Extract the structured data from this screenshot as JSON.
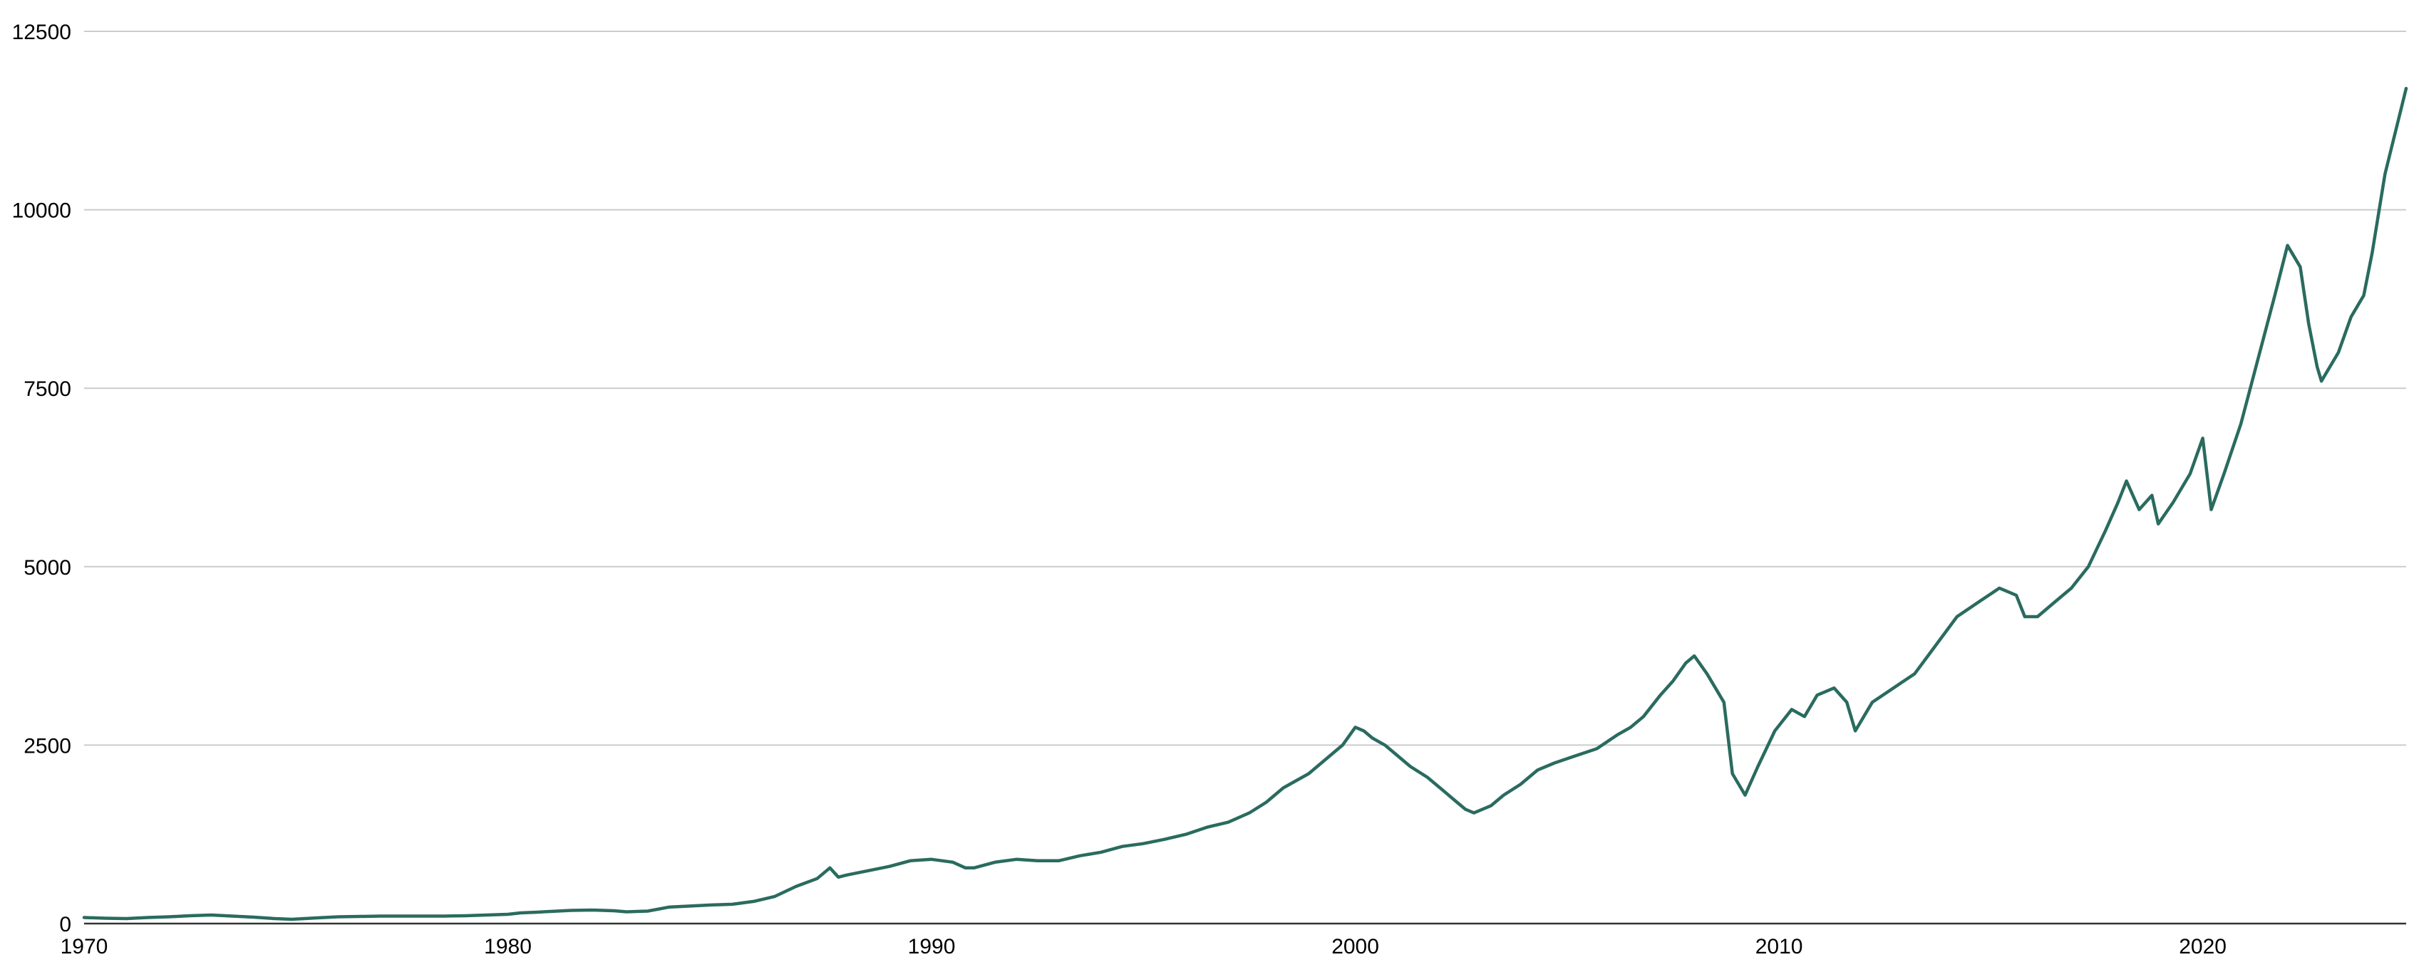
{
  "chart_data": {
    "type": "line",
    "title": "",
    "xlabel": "",
    "ylabel": "",
    "xlim": [
      1970,
      2024.8
    ],
    "ylim": [
      0,
      12500
    ],
    "y_ticks": [
      0,
      2500,
      5000,
      7500,
      10000,
      12500
    ],
    "y_tick_labels": [
      "0",
      "2500",
      "5000",
      "7500",
      "10000",
      "12500"
    ],
    "x_ticks": [
      1970,
      1980,
      1990,
      2000,
      2010,
      2020
    ],
    "x_tick_labels": [
      "1970",
      "1980",
      "1990",
      "2000",
      "2010",
      "2020"
    ],
    "grid": "horizontal",
    "legend": "none",
    "line_color": "#2a6b5f",
    "series": [
      {
        "x": [
          1970.0,
          1970.5,
          1971.0,
          1971.5,
          1972.0,
          1972.5,
          1973.0,
          1973.5,
          1974.0,
          1974.5,
          1974.9,
          1975.5,
          1976.0,
          1976.5,
          1977.0,
          1977.5,
          1978.0,
          1978.5,
          1979.0,
          1979.5,
          1980.0,
          1980.3,
          1980.7,
          1981.0,
          1981.5,
          1982.0,
          1982.5,
          1982.8,
          1983.3,
          1983.8,
          1984.3,
          1984.8,
          1985.3,
          1985.8,
          1986.3,
          1986.8,
          1987.3,
          1987.6,
          1987.8,
          1988.0,
          1988.5,
          1989.0,
          1989.5,
          1990.0,
          1990.5,
          1990.8,
          1991.0,
          1991.5,
          1992.0,
          1992.5,
          1993.0,
          1993.5,
          1994.0,
          1994.5,
          1995.0,
          1995.5,
          1996.0,
          1996.5,
          1997.0,
          1997.5,
          1997.9,
          1998.3,
          1998.6,
          1998.9,
          1999.3,
          1999.7,
          2000.0,
          2000.2,
          2000.4,
          2000.7,
          2001.0,
          2001.3,
          2001.7,
          2002.0,
          2002.3,
          2002.6,
          2002.8,
          2003.2,
          2003.5,
          2003.9,
          2004.3,
          2004.7,
          2005.2,
          2005.7,
          2006.2,
          2006.5,
          2006.8,
          2007.2,
          2007.5,
          2007.8,
          2008.0,
          2008.3,
          2008.5,
          2008.7,
          2008.9,
          2009.2,
          2009.5,
          2009.9,
          2010.3,
          2010.6,
          2010.9,
          2011.3,
          2011.6,
          2011.8,
          2012.2,
          2012.7,
          2013.2,
          2013.7,
          2014.2,
          2014.7,
          2015.2,
          2015.6,
          2015.8,
          2016.1,
          2016.5,
          2016.9,
          2017.3,
          2017.7,
          2018.0,
          2018.2,
          2018.5,
          2018.8,
          2018.95,
          2019.3,
          2019.7,
          2020.0,
          2020.2,
          2020.5,
          2020.9,
          2021.3,
          2021.7,
          2022.0,
          2022.3,
          2022.5,
          2022.7,
          2022.8,
          2023.2,
          2023.5,
          2023.8,
          2024.0,
          2024.3,
          2024.8
        ],
        "y": [
          85,
          75,
          70,
          85,
          95,
          110,
          120,
          105,
          90,
          70,
          60,
          80,
          95,
          100,
          105,
          105,
          105,
          105,
          110,
          120,
          130,
          150,
          160,
          170,
          185,
          190,
          180,
          165,
          175,
          230,
          245,
          260,
          270,
          310,
          380,
          520,
          630,
          780,
          650,
          680,
          740,
          800,
          880,
          900,
          860,
          780,
          780,
          860,
          900,
          880,
          880,
          950,
          1000,
          1080,
          1120,
          1180,
          1250,
          1350,
          1420,
          1550,
          1700,
          1900,
          2000,
          2100,
          2300,
          2500,
          2750,
          2700,
          2600,
          2500,
          2350,
          2200,
          2050,
          1900,
          1750,
          1600,
          1550,
          1650,
          1800,
          1950,
          2150,
          2250,
          2350,
          2450,
          2650,
          2750,
          2900,
          3200,
          3400,
          3650,
          3750,
          3500,
          3300,
          3100,
          2100,
          1800,
          2200,
          2700,
          3000,
          2900,
          3200,
          3300,
          3100,
          2700,
          3100,
          3300,
          3500,
          3900,
          4300,
          4500,
          4700,
          4600,
          4300,
          4300,
          4500,
          4700,
          5000,
          5500,
          5900,
          6200,
          5800,
          6000,
          5600,
          5900,
          6300,
          6800,
          5800,
          6300,
          7000,
          7900,
          8800,
          9500,
          9200,
          8400,
          7800,
          7600,
          8000,
          8500,
          8800,
          9400,
          10500,
          11700
        ]
      }
    ]
  }
}
